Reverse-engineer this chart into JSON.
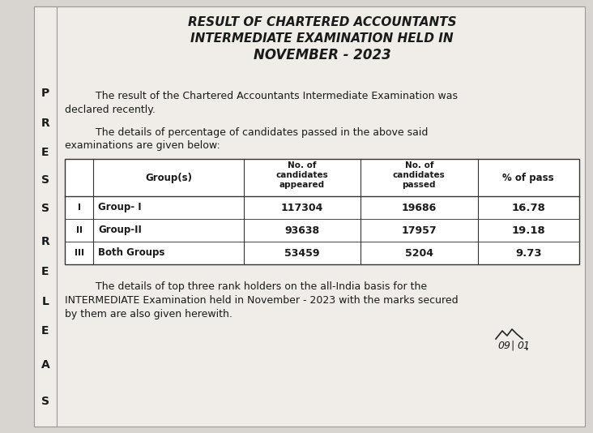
{
  "title_line1": "RESULT OF CHARTERED ACCOUNTANTS",
  "title_line2": "INTERMEDIATE EXAMINATION HELD IN",
  "title_line3": "NOVEMBER - 2023",
  "para1_line1": "The result of the Chartered Accountants Intermediate Examination was",
  "para1_line2": "declared recently.",
  "para2_line1": "The details of percentage of candidates passed in the above said",
  "para2_line2": "examinations are given below:",
  "table_rows": [
    [
      "I",
      "Group- I",
      "117304",
      "19686",
      "16.78"
    ],
    [
      "II",
      "Group-II",
      "93638",
      "17957",
      "19.18"
    ],
    [
      "III",
      "Both Groups",
      "53459",
      "5204",
      "9.73"
    ]
  ],
  "para3_line1": "The details of top three rank holders on the all-India basis for the",
  "para3_line2": "INTERMEDIATE Examination held in November - 2023 with the marks secured",
  "para3_line3": "by them are also given herewith.",
  "sidebar_letters": [
    "P",
    "R",
    "E",
    "S",
    "S",
    "R",
    "E",
    "L",
    "E",
    "A",
    "S"
  ],
  "bg_color": "#d8d4d0",
  "paper_color": "#f0ede8",
  "text_color": "#1a1a1a"
}
